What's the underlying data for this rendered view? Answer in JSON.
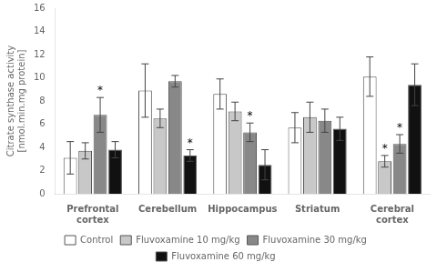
{
  "chart_data": {
    "type": "bar",
    "categories": [
      "Prefrontal\ncortex",
      "Cerebellum",
      "Hippocampus",
      "Striatum",
      "Cerebral\ncortex"
    ],
    "series": [
      {
        "name": "Control",
        "color": "#ffffff",
        "values": [
          3.1,
          8.9,
          8.6,
          5.7,
          10.1
        ],
        "errors": [
          1.4,
          2.3,
          1.3,
          1.3,
          1.7
        ],
        "annotations": [
          null,
          null,
          null,
          null,
          null
        ]
      },
      {
        "name": "Fluvoxamine 10 mg/kg",
        "color": "#c8c8c8",
        "values": [
          3.7,
          6.5,
          7.1,
          6.6,
          2.8
        ],
        "errors": [
          0.7,
          0.8,
          0.8,
          1.3,
          0.5
        ],
        "annotations": [
          null,
          null,
          null,
          null,
          "*"
        ]
      },
      {
        "name": "Fluvoxamine 30 mg/kg",
        "color": "#888888",
        "values": [
          6.8,
          9.7,
          5.3,
          6.3,
          4.3
        ],
        "errors": [
          1.5,
          0.5,
          0.8,
          1.0,
          0.8
        ],
        "annotations": [
          "*",
          null,
          "*",
          null,
          "*"
        ]
      },
      {
        "name": "Fluvoxamine 60 mg/kg",
        "color": "#111111",
        "values": [
          3.8,
          3.3,
          2.5,
          5.6,
          9.4
        ],
        "errors": [
          0.7,
          0.5,
          1.3,
          1.0,
          1.8
        ],
        "annotations": [
          null,
          "*",
          null,
          null,
          null
        ]
      }
    ],
    "ylabel": "Citrate synthase activity\n[nmol.min.mg protein]",
    "ylim": [
      0,
      16
    ],
    "yticks": [
      0,
      2,
      4,
      6,
      8,
      10,
      12,
      14,
      16
    ],
    "grid": false,
    "legend": "bottom"
  }
}
